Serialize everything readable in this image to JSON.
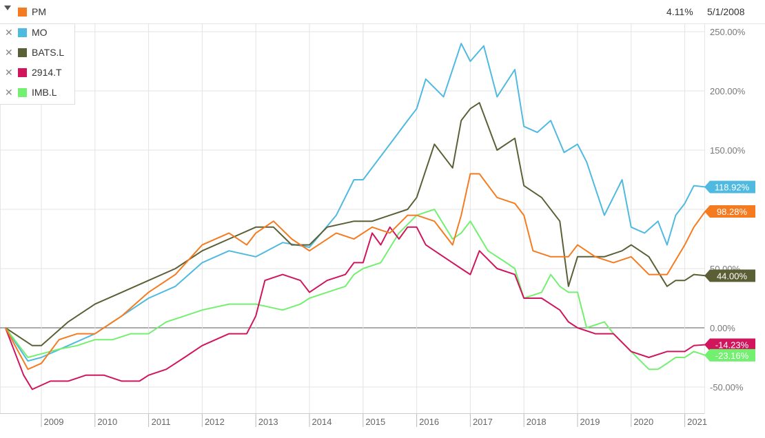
{
  "header": {
    "main_series": "PM",
    "main_color": "#f47b20",
    "change": "4.11%",
    "date": "5/1/2008",
    "caret_icon": "caret-down-icon"
  },
  "legend": {
    "remove_icon": "close-icon",
    "items": [
      {
        "label": "MO",
        "color": "#4fb9e0"
      },
      {
        "label": "BATS.L",
        "color": "#5b5f35"
      },
      {
        "label": "2914.T",
        "color": "#d0155d"
      },
      {
        "label": "IMB.L",
        "color": "#73f06f"
      }
    ]
  },
  "chart_data": {
    "type": "line",
    "x_ticks": [
      "2009",
      "2010",
      "2011",
      "2012",
      "2013",
      "2014",
      "2015",
      "2016",
      "2017",
      "2018",
      "2019",
      "2020",
      "2021"
    ],
    "y_ticks": [
      "250.00%",
      "200.00%",
      "150.00%",
      "50.00%",
      "0.00%",
      "-50.00%"
    ],
    "ylim": [
      -72,
      262
    ],
    "xlim": [
      2008.33,
      2021.38
    ],
    "grid": true,
    "series": [
      {
        "name": "MO",
        "color": "#4fb9e0",
        "end_label": "118.92%",
        "points": [
          [
            2008.33,
            0
          ],
          [
            2008.75,
            -28
          ],
          [
            2009.0,
            -25
          ],
          [
            2009.5,
            -15
          ],
          [
            2010.0,
            -5
          ],
          [
            2010.5,
            10
          ],
          [
            2011.0,
            25
          ],
          [
            2011.5,
            35
          ],
          [
            2012.0,
            55
          ],
          [
            2012.5,
            65
          ],
          [
            2013.0,
            60
          ],
          [
            2013.5,
            72
          ],
          [
            2014.0,
            68
          ],
          [
            2014.5,
            95
          ],
          [
            2014.83,
            125
          ],
          [
            2015.0,
            125
          ],
          [
            2015.5,
            155
          ],
          [
            2015.83,
            175
          ],
          [
            2016.0,
            185
          ],
          [
            2016.17,
            210
          ],
          [
            2016.5,
            195
          ],
          [
            2016.83,
            240
          ],
          [
            2017.0,
            225
          ],
          [
            2017.25,
            238
          ],
          [
            2017.5,
            195
          ],
          [
            2017.83,
            218
          ],
          [
            2018.0,
            170
          ],
          [
            2018.25,
            165
          ],
          [
            2018.5,
            175
          ],
          [
            2018.75,
            148
          ],
          [
            2019.0,
            155
          ],
          [
            2019.17,
            140
          ],
          [
            2019.5,
            95
          ],
          [
            2019.83,
            125
          ],
          [
            2020.0,
            85
          ],
          [
            2020.25,
            80
          ],
          [
            2020.5,
            90
          ],
          [
            2020.67,
            70
          ],
          [
            2020.83,
            95
          ],
          [
            2021.0,
            105
          ],
          [
            2021.17,
            120
          ],
          [
            2021.38,
            118.92
          ]
        ]
      },
      {
        "name": "PM",
        "color": "#f47b20",
        "end_label": "98.28%",
        "points": [
          [
            2008.33,
            0
          ],
          [
            2008.75,
            -35
          ],
          [
            2009.0,
            -30
          ],
          [
            2009.33,
            -10
          ],
          [
            2009.67,
            -5
          ],
          [
            2010.0,
            -5
          ],
          [
            2010.5,
            10
          ],
          [
            2011.0,
            30
          ],
          [
            2011.5,
            45
          ],
          [
            2012.0,
            70
          ],
          [
            2012.5,
            80
          ],
          [
            2012.83,
            70
          ],
          [
            2013.0,
            80
          ],
          [
            2013.33,
            90
          ],
          [
            2013.67,
            75
          ],
          [
            2014.0,
            65
          ],
          [
            2014.5,
            80
          ],
          [
            2014.83,
            75
          ],
          [
            2015.17,
            85
          ],
          [
            2015.5,
            80
          ],
          [
            2015.83,
            95
          ],
          [
            2016.0,
            95
          ],
          [
            2016.33,
            90
          ],
          [
            2016.67,
            70
          ],
          [
            2016.83,
            95
          ],
          [
            2017.0,
            130
          ],
          [
            2017.17,
            130
          ],
          [
            2017.5,
            110
          ],
          [
            2017.83,
            105
          ],
          [
            2018.0,
            95
          ],
          [
            2018.17,
            65
          ],
          [
            2018.5,
            60
          ],
          [
            2018.83,
            60
          ],
          [
            2019.0,
            70
          ],
          [
            2019.33,
            60
          ],
          [
            2019.67,
            55
          ],
          [
            2020.0,
            60
          ],
          [
            2020.33,
            45
          ],
          [
            2020.67,
            45
          ],
          [
            2021.0,
            70
          ],
          [
            2021.17,
            85
          ],
          [
            2021.38,
            98.28
          ]
        ]
      },
      {
        "name": "BATS.L",
        "color": "#5b5f35",
        "end_label": "44.00%",
        "points": [
          [
            2008.33,
            0
          ],
          [
            2008.83,
            -15
          ],
          [
            2009.0,
            -15
          ],
          [
            2009.5,
            5
          ],
          [
            2010.0,
            20
          ],
          [
            2010.5,
            30
          ],
          [
            2011.0,
            40
          ],
          [
            2011.5,
            50
          ],
          [
            2012.0,
            65
          ],
          [
            2012.5,
            75
          ],
          [
            2013.0,
            85
          ],
          [
            2013.33,
            85
          ],
          [
            2013.67,
            70
          ],
          [
            2014.0,
            70
          ],
          [
            2014.33,
            85
          ],
          [
            2014.83,
            90
          ],
          [
            2015.17,
            90
          ],
          [
            2015.5,
            95
          ],
          [
            2015.83,
            100
          ],
          [
            2016.0,
            110
          ],
          [
            2016.33,
            155
          ],
          [
            2016.67,
            135
          ],
          [
            2016.83,
            175
          ],
          [
            2017.0,
            185
          ],
          [
            2017.17,
            190
          ],
          [
            2017.5,
            150
          ],
          [
            2017.83,
            160
          ],
          [
            2018.0,
            120
          ],
          [
            2018.33,
            110
          ],
          [
            2018.67,
            90
          ],
          [
            2018.83,
            35
          ],
          [
            2019.0,
            60
          ],
          [
            2019.5,
            60
          ],
          [
            2019.83,
            65
          ],
          [
            2020.0,
            70
          ],
          [
            2020.33,
            60
          ],
          [
            2020.67,
            35
          ],
          [
            2020.83,
            40
          ],
          [
            2021.0,
            40
          ],
          [
            2021.17,
            45
          ],
          [
            2021.38,
            44
          ]
        ]
      },
      {
        "name": "2914.T",
        "color": "#d0155d",
        "end_label": "-14.23%",
        "points": [
          [
            2008.33,
            0
          ],
          [
            2008.67,
            -40
          ],
          [
            2008.83,
            -52
          ],
          [
            2009.17,
            -45
          ],
          [
            2009.5,
            -45
          ],
          [
            2009.83,
            -40
          ],
          [
            2010.17,
            -40
          ],
          [
            2010.5,
            -45
          ],
          [
            2010.83,
            -45
          ],
          [
            2011.0,
            -40
          ],
          [
            2011.33,
            -35
          ],
          [
            2011.67,
            -25
          ],
          [
            2012.0,
            -15
          ],
          [
            2012.5,
            -5
          ],
          [
            2012.83,
            -5
          ],
          [
            2013.0,
            10
          ],
          [
            2013.17,
            40
          ],
          [
            2013.5,
            45
          ],
          [
            2013.83,
            40
          ],
          [
            2014.0,
            30
          ],
          [
            2014.33,
            40
          ],
          [
            2014.67,
            45
          ],
          [
            2014.83,
            55
          ],
          [
            2015.0,
            55
          ],
          [
            2015.17,
            80
          ],
          [
            2015.33,
            70
          ],
          [
            2015.5,
            85
          ],
          [
            2015.67,
            75
          ],
          [
            2015.83,
            85
          ],
          [
            2016.0,
            85
          ],
          [
            2016.17,
            70
          ],
          [
            2016.5,
            60
          ],
          [
            2016.83,
            50
          ],
          [
            2017.0,
            45
          ],
          [
            2017.17,
            65
          ],
          [
            2017.5,
            50
          ],
          [
            2017.83,
            45
          ],
          [
            2018.0,
            25
          ],
          [
            2018.33,
            25
          ],
          [
            2018.67,
            15
          ],
          [
            2018.83,
            5
          ],
          [
            2019.0,
            0
          ],
          [
            2019.33,
            -5
          ],
          [
            2019.67,
            -5
          ],
          [
            2020.0,
            -20
          ],
          [
            2020.33,
            -25
          ],
          [
            2020.67,
            -20
          ],
          [
            2021.0,
            -20
          ],
          [
            2021.17,
            -15
          ],
          [
            2021.38,
            -14.23
          ]
        ]
      },
      {
        "name": "IMB.L",
        "color": "#73f06f",
        "end_label": "-23.16%",
        "points": [
          [
            2008.33,
            0
          ],
          [
            2008.75,
            -25
          ],
          [
            2009.0,
            -22
          ],
          [
            2009.33,
            -18
          ],
          [
            2009.67,
            -15
          ],
          [
            2010.0,
            -10
          ],
          [
            2010.33,
            -10
          ],
          [
            2010.67,
            -5
          ],
          [
            2011.0,
            -5
          ],
          [
            2011.33,
            5
          ],
          [
            2011.67,
            10
          ],
          [
            2012.0,
            15
          ],
          [
            2012.5,
            20
          ],
          [
            2013.0,
            20
          ],
          [
            2013.5,
            15
          ],
          [
            2013.83,
            20
          ],
          [
            2014.0,
            25
          ],
          [
            2014.33,
            30
          ],
          [
            2014.67,
            35
          ],
          [
            2014.83,
            45
          ],
          [
            2015.0,
            50
          ],
          [
            2015.33,
            55
          ],
          [
            2015.67,
            80
          ],
          [
            2016.0,
            95
          ],
          [
            2016.33,
            100
          ],
          [
            2016.67,
            75
          ],
          [
            2016.83,
            80
          ],
          [
            2017.0,
            90
          ],
          [
            2017.33,
            65
          ],
          [
            2017.67,
            55
          ],
          [
            2017.83,
            50
          ],
          [
            2018.0,
            25
          ],
          [
            2018.33,
            30
          ],
          [
            2018.5,
            45
          ],
          [
            2018.67,
            35
          ],
          [
            2018.83,
            30
          ],
          [
            2019.0,
            30
          ],
          [
            2019.17,
            0
          ],
          [
            2019.5,
            5
          ],
          [
            2019.67,
            -5
          ],
          [
            2020.0,
            -20
          ],
          [
            2020.33,
            -35
          ],
          [
            2020.5,
            -35
          ],
          [
            2020.67,
            -30
          ],
          [
            2020.83,
            -25
          ],
          [
            2021.0,
            -25
          ],
          [
            2021.17,
            -20
          ],
          [
            2021.38,
            -23.16
          ]
        ]
      }
    ]
  }
}
